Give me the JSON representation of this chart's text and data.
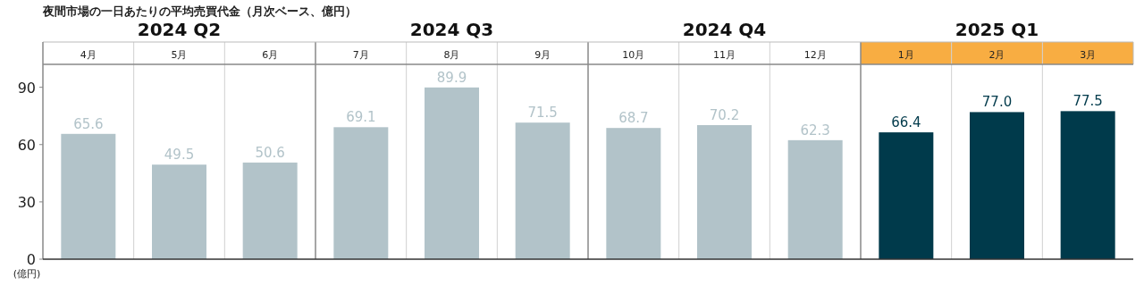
{
  "chart_data": {
    "type": "bar",
    "title": "夜間市場の一日あたりの平均売買代金（月次ベース、億円）",
    "ylabel": "(億円)",
    "categories": [
      "4月",
      "5月",
      "6月",
      "7月",
      "8月",
      "9月",
      "10月",
      "11月",
      "12月",
      "1月",
      "2月",
      "3月"
    ],
    "values": [
      65.6,
      49.5,
      50.6,
      69.1,
      89.9,
      71.5,
      68.7,
      70.2,
      62.3,
      66.4,
      77.0,
      77.5
    ],
    "value_labels": [
      "65.6",
      "49.5",
      "50.6",
      "69.1",
      "89.9",
      "71.5",
      "68.7",
      "70.2",
      "62.3",
      "66.4",
      "77.0",
      "77.5"
    ],
    "colors": [
      "#b2c3c9",
      "#b2c3c9",
      "#b2c3c9",
      "#b2c3c9",
      "#b2c3c9",
      "#b2c3c9",
      "#b2c3c9",
      "#b2c3c9",
      "#b2c3c9",
      "#003a4b",
      "#003a4b",
      "#003a4b"
    ],
    "annotations": [
      "2024 Q2",
      "2024 Q3",
      "2024 Q4",
      "2025 Q1"
    ],
    "ylim": [
      0,
      102
    ],
    "yticks": [
      0,
      30,
      60,
      90
    ],
    "grid": "x"
  }
}
